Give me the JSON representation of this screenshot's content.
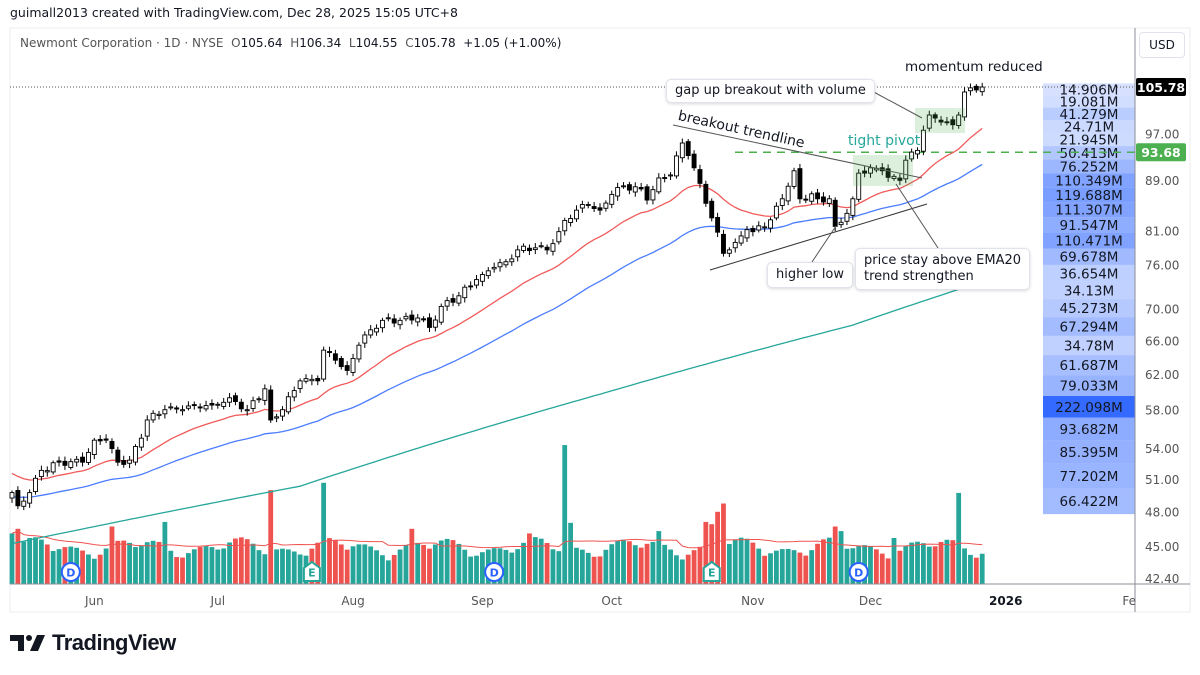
{
  "header": {
    "credit": "guimall2013 created with TradingView.com, Dec 28, 2025 15:05 UTC+8",
    "symbol": "Newmont Corporation · 1D · NYSE",
    "o_label": "O",
    "o": "105.64",
    "h_label": "H",
    "h": "106.34",
    "l_label": "L",
    "l": "104.55",
    "c_label": "C",
    "c": "105.78",
    "change": "+1.05 (+1.00%)",
    "currency": "USD"
  },
  "annotations": {
    "momentum": "momentum reduced",
    "gap_up": "gap up breakout with volume",
    "trendline": "breakout trendline",
    "tight_pivot": "tight pivot",
    "higher_low": "higher low",
    "ema20": "price stay above EMA20\ntrend strengthen"
  },
  "footer": {
    "brand": "TradingView"
  },
  "colors": {
    "up_volume": "#26a69a",
    "down_volume": "#ef5350",
    "ema20": "#f05a5a",
    "ema50": "#4c7dff",
    "ma200": "#26a69a",
    "pivot": "#4caf50",
    "profile": "#2962ff"
  },
  "chart_data": {
    "type": "candlestick",
    "symbol": "Newmont Corporation",
    "interval": "1D",
    "exchange": "NYSE",
    "y_scale": "log",
    "ylim": [
      42.4,
      105.78
    ],
    "last_price": 105.78,
    "last_price_label": "105.78",
    "pivot_level": 93.68,
    "pivot_label": "93.68",
    "price_ticks": [
      "97.00",
      "89.00",
      "81.00",
      "76.00",
      "70.00",
      "66.00",
      "62.00",
      "58.00",
      "54.00",
      "51.00",
      "48.00",
      "45.00",
      "42.40"
    ],
    "x_ticks": [
      {
        "label": "Jun",
        "bar": 14
      },
      {
        "label": "Jul",
        "bar": 35
      },
      {
        "label": "Aug",
        "bar": 58
      },
      {
        "label": "Sep",
        "bar": 80
      },
      {
        "label": "Oct",
        "bar": 102
      },
      {
        "label": "Nov",
        "bar": 126
      },
      {
        "label": "Dec",
        "bar": 146
      },
      {
        "label": "2026",
        "bar": 169,
        "bold": true
      },
      {
        "label": "Fe",
        "bar": 190
      }
    ],
    "bar_count": 166,
    "close_anchors": [
      [
        0,
        49.7
      ],
      [
        1,
        48.5
      ],
      [
        3,
        49.7
      ],
      [
        5,
        51.8
      ],
      [
        8,
        52.6
      ],
      [
        12,
        52.6
      ],
      [
        14,
        54.8
      ],
      [
        16,
        54.8
      ],
      [
        18,
        52.6
      ],
      [
        20,
        52.8
      ],
      [
        22,
        55.0
      ],
      [
        23,
        56.9
      ],
      [
        26,
        58.0
      ],
      [
        29,
        58.0
      ],
      [
        31,
        58.5
      ],
      [
        34,
        58.5
      ],
      [
        37,
        59.3
      ],
      [
        40,
        58.0
      ],
      [
        43,
        60.3
      ],
      [
        44,
        56.9
      ],
      [
        46,
        58.0
      ],
      [
        49,
        61.2
      ],
      [
        52,
        61.2
      ],
      [
        53,
        64.8
      ],
      [
        55,
        63.6
      ],
      [
        57,
        62.4
      ],
      [
        59,
        65.4
      ],
      [
        61,
        67.3
      ],
      [
        63,
        68.5
      ],
      [
        66,
        68.5
      ],
      [
        69,
        68.8
      ],
      [
        71,
        67.6
      ],
      [
        73,
        70.3
      ],
      [
        76,
        71.7
      ],
      [
        79,
        73.9
      ],
      [
        80,
        74.6
      ],
      [
        82,
        75.6
      ],
      [
        84,
        76.4
      ],
      [
        86,
        78.1
      ],
      [
        89,
        78.4
      ],
      [
        91,
        78.1
      ],
      [
        93,
        80.8
      ],
      [
        94,
        82.5
      ],
      [
        96,
        84.1
      ],
      [
        98,
        85.0
      ],
      [
        100,
        84.1
      ],
      [
        102,
        86.6
      ],
      [
        104,
        88.0
      ],
      [
        107,
        87.5
      ],
      [
        108,
        85.7
      ],
      [
        110,
        89.3
      ],
      [
        112,
        89.8
      ],
      [
        114,
        95.3
      ],
      [
        115,
        93.1
      ],
      [
        117,
        88.4
      ],
      [
        119,
        82.9
      ],
      [
        121,
        77.6
      ],
      [
        123,
        79.2
      ],
      [
        125,
        81.1
      ],
      [
        126,
        80.8
      ],
      [
        129,
        82.6
      ],
      [
        131,
        85.9
      ],
      [
        133,
        90.5
      ],
      [
        134,
        85.9
      ],
      [
        136,
        86.7
      ],
      [
        137,
        85.9
      ],
      [
        139,
        85.9
      ],
      [
        140,
        81.6
      ],
      [
        142,
        83.6
      ],
      [
        143,
        85.9
      ],
      [
        144,
        90.1
      ],
      [
        146,
        91.0
      ],
      [
        148,
        90.5
      ],
      [
        149,
        89.4
      ],
      [
        151,
        88.9
      ],
      [
        152,
        92.3
      ],
      [
        154,
        94.0
      ],
      [
        155,
        97.6
      ],
      [
        156,
        100.4
      ],
      [
        158,
        99.1
      ],
      [
        160,
        98.6
      ],
      [
        161,
        100.4
      ],
      [
        162,
        104.8
      ],
      [
        164,
        105.2
      ],
      [
        165,
        105.78
      ]
    ],
    "ema20_start": 51.7,
    "ema50_start": 49.3,
    "ma200_anchors": [
      [
        0,
        45.2
      ],
      [
        49,
        50.3
      ],
      [
        100,
        59.7
      ],
      [
        143,
        67.9
      ],
      [
        165,
        73.6
      ]
    ],
    "volume_unit": "M",
    "volume_base": 8.5,
    "volume_spikes": [
      [
        0,
        11
      ],
      [
        1,
        12
      ],
      [
        17,
        12.5
      ],
      [
        26,
        13.5
      ],
      [
        44,
        20.4
      ],
      [
        53,
        22
      ],
      [
        68,
        12
      ],
      [
        88,
        11
      ],
      [
        94,
        30.2
      ],
      [
        95,
        13.3
      ],
      [
        110,
        11.5
      ],
      [
        118,
        13.5
      ],
      [
        120,
        15.7
      ],
      [
        121,
        17.5
      ],
      [
        119,
        13
      ],
      [
        140,
        12.5
      ],
      [
        141,
        11.5
      ],
      [
        150,
        10
      ],
      [
        161,
        19.8
      ]
    ],
    "events": [
      {
        "type": "D",
        "bar": 10
      },
      {
        "type": "E",
        "bar": 51
      },
      {
        "type": "D",
        "bar": 82
      },
      {
        "type": "E",
        "bar": 119
      },
      {
        "type": "D",
        "bar": 144
      }
    ],
    "volume_profile": {
      "price_high": 106.5,
      "bin_size": 2.35,
      "rows": [
        "14.906M",
        "19.081M",
        "41.279M",
        "24.71M",
        "21.945M",
        "50.413M",
        "76.252M",
        "110.349M",
        "119.688M",
        "111.307M",
        "91.547M",
        "110.471M",
        "69.678M",
        "36.654M",
        "34.13M",
        "45.273M",
        "67.294M",
        "34.78M",
        "61.687M",
        "79.033M",
        "222.098M",
        "93.682M",
        "85.395M",
        "77.202M",
        "66.422M"
      ]
    }
  }
}
